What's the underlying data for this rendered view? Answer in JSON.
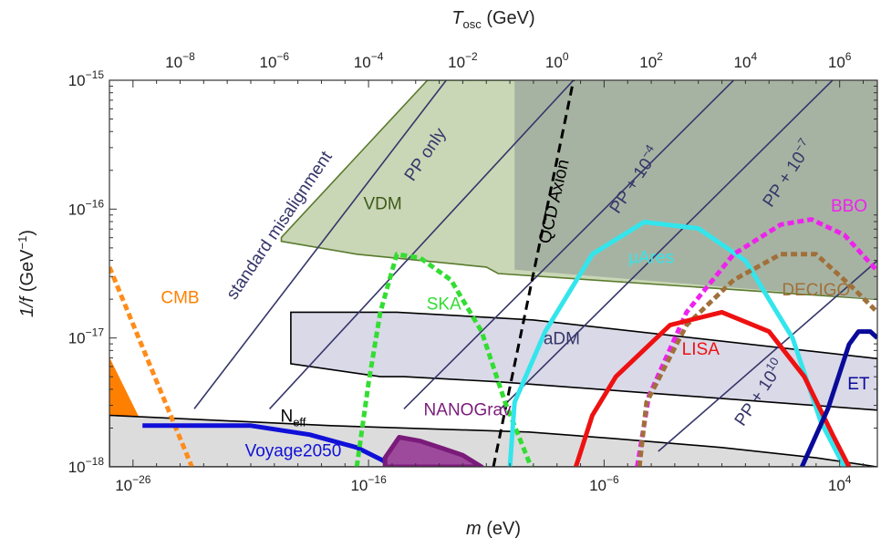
{
  "chart_data": {
    "type": "area",
    "xlabel_main": "m",
    "xlabel_unit": "(eV)",
    "ylabel": "1/f (GeV⁻¹)",
    "ylabel_main": "1/f",
    "ylabel_unit": "(GeV",
    "ylabel_exp": "−1",
    "ylabel_close": ")",
    "x2label_main": "T",
    "x2label_sub": "osc",
    "x2label_unit": "(GeV)",
    "xscale": "log",
    "yscale": "log",
    "xlim_log10": [
      -27,
      5.6
    ],
    "ylim_log10": [
      -18,
      -15
    ],
    "bottom_ticks": [
      {
        "pow": -26,
        "label": "10",
        "exp": "−26"
      },
      {
        "pow": -16,
        "label": "10",
        "exp": "−16"
      },
      {
        "pow": -6,
        "label": "10",
        "exp": "−6"
      },
      {
        "pow": 4,
        "label": "10",
        "exp": "4"
      }
    ],
    "left_ticks": [
      {
        "pow": -15,
        "label": "10",
        "exp": "−15"
      },
      {
        "pow": -16,
        "label": "10",
        "exp": "−16"
      },
      {
        "pow": -17,
        "label": "10",
        "exp": "−17"
      },
      {
        "pow": -18,
        "label": "10",
        "exp": "−18"
      }
    ],
    "top_ticks": [
      {
        "pow": -8,
        "label": "10",
        "exp": "−8"
      },
      {
        "pow": -6,
        "label": "10",
        "exp": "−6"
      },
      {
        "pow": -4,
        "label": "10",
        "exp": "−4"
      },
      {
        "pow": -2,
        "label": "10",
        "exp": "−2"
      },
      {
        "pow": 0,
        "label": "10",
        "exp": "0"
      },
      {
        "pow": 2,
        "label": "10",
        "exp": "2"
      },
      {
        "pow": 4,
        "label": "10",
        "exp": "4"
      },
      {
        "pow": 6,
        "label": "10",
        "exp": "6"
      }
    ],
    "top_axis_map": {
      "slope": 2.0,
      "intercept": -8.0
    },
    "regions": [
      {
        "name": "CMB",
        "label": "CMB",
        "color": "#ff8000",
        "points": [
          [
            -27,
            -17.15
          ],
          [
            -24.7,
            -18
          ],
          [
            -27,
            -18
          ]
        ]
      },
      {
        "name": "Neff",
        "label": "N",
        "label_sub": "eff",
        "color": "#dcdcdc",
        "stroke": "#000000",
        "points": [
          [
            -27,
            -17.6
          ],
          [
            -17.6,
            -17.68
          ],
          [
            -9.2,
            -17.73
          ],
          [
            -5.6,
            -17.78
          ],
          [
            -1,
            -17.85
          ],
          [
            3,
            -17.93
          ],
          [
            5.6,
            -18
          ],
          [
            5.6,
            -18
          ],
          [
            -27,
            -18
          ]
        ]
      },
      {
        "name": "aDM",
        "label": "aDM",
        "color": "#d9d9e8",
        "stroke": "#000000",
        "points": [
          [
            -19.3,
            -16.8
          ],
          [
            -14.8,
            -16.8
          ],
          [
            -9.0,
            -16.86
          ],
          [
            5.6,
            -17.16
          ],
          [
            5.6,
            -17.56
          ],
          [
            -10.5,
            -17.34
          ],
          [
            -14.5,
            -17.3
          ],
          [
            -15.5,
            -17.3
          ],
          [
            -19.3,
            -17.2
          ]
        ]
      },
      {
        "name": "VDM",
        "label": "VDM",
        "color": "#c9d7b6",
        "stroke": "#5a7a2e",
        "points": [
          [
            -19.7,
            -16.22
          ],
          [
            -13.5,
            -15
          ],
          [
            5.6,
            -15
          ],
          [
            5.6,
            -16.7
          ],
          [
            -10.5,
            -16.5
          ],
          [
            -11,
            -16.45
          ],
          [
            -16.5,
            -16.35
          ],
          [
            -19.7,
            -16.25
          ]
        ]
      },
      {
        "name": "QCD-allowed",
        "label": "",
        "color": "#a7b3a2",
        "points": [
          [
            -9.8,
            -15.0
          ],
          [
            5.6,
            -15.0
          ],
          [
            5.6,
            -16.7
          ],
          [
            -9.8,
            -16.47
          ]
        ]
      }
    ],
    "lines": [
      {
        "name": "standard misalignment",
        "label": "standard misalignment",
        "color": "#36366a",
        "points": [
          [
            -23.4,
            -17.55
          ],
          [
            -12.7,
            -15.0
          ]
        ]
      },
      {
        "name": "PP only",
        "label": "PP only",
        "color": "#36366a",
        "points": [
          [
            -20.2,
            -17.55
          ],
          [
            -7.3,
            -15.0
          ]
        ]
      },
      {
        "name": "PP + 10^-4",
        "label": "PP + 10",
        "exp": "−4",
        "color": "#36366a",
        "points": [
          [
            -14.5,
            -17.55
          ],
          [
            -0.5,
            -15.0
          ]
        ]
      },
      {
        "name": "PP + 10^-7",
        "label": "PP + 10",
        "exp": "−7",
        "color": "#36366a",
        "points": [
          [
            -10.4,
            -17.55
          ],
          [
            3.7,
            -15.0
          ]
        ]
      },
      {
        "name": "PP + 10^10",
        "label": "PP + 10",
        "exp": "10",
        "color": "#36366a",
        "points": [
          [
            -3.7,
            -17.88
          ],
          [
            5.6,
            -16.4
          ]
        ]
      },
      {
        "name": "QCD Axion",
        "label": "QCD Axion",
        "color": "#000000",
        "dash": "10,6",
        "points": [
          [
            -10.7,
            -18
          ],
          [
            -7.3,
            -15.0
          ]
        ]
      }
    ],
    "curves": [
      {
        "name": "CMB",
        "label": "CMB",
        "color": "#ff8c1a",
        "dash": "7,4",
        "width": 5,
        "points": [
          [
            -27,
            -16.45
          ],
          [
            -23.5,
            -18
          ]
        ]
      },
      {
        "name": "Voyage2050",
        "label": "Voyage2050",
        "color": "#1010d8",
        "width": 5,
        "points": [
          [
            -25.6,
            -17.68
          ],
          [
            -21.0,
            -17.68
          ],
          [
            -18.5,
            -17.75
          ],
          [
            -16.5,
            -17.85
          ],
          [
            -15.4,
            -17.95
          ],
          [
            -15.0,
            -18.0
          ]
        ]
      },
      {
        "name": "NANOGrav",
        "label": "NANOGrav",
        "color": "#7a1b7a",
        "width": 5,
        "fill": "#9d4a9d",
        "points": [
          [
            -15.3,
            -17.93
          ],
          [
            -14.7,
            -17.77
          ],
          [
            -13.8,
            -17.8
          ],
          [
            -12.8,
            -17.86
          ],
          [
            -12.0,
            -17.91
          ],
          [
            -11.2,
            -18.0
          ],
          [
            -15.3,
            -18.0
          ]
        ]
      },
      {
        "name": "SKA",
        "label": "SKA",
        "color": "#33dd33",
        "dash": "7,4",
        "width": 5,
        "points": [
          [
            -16.5,
            -18.0
          ],
          [
            -16.0,
            -17.35
          ],
          [
            -15.5,
            -16.8
          ],
          [
            -14.8,
            -16.35
          ],
          [
            -13.8,
            -16.38
          ],
          [
            -12.5,
            -16.55
          ],
          [
            -11.2,
            -16.95
          ],
          [
            -10.2,
            -17.5
          ],
          [
            -9.1,
            -18.0
          ]
        ]
      },
      {
        "name": "muAres",
        "label": "μAres",
        "color": "#33e5ec",
        "width": 5,
        "points": [
          [
            -10.0,
            -18.0
          ],
          [
            -9.8,
            -17.5
          ],
          [
            -8.5,
            -16.95
          ],
          [
            -6.5,
            -16.35
          ],
          [
            -4.3,
            -16.1
          ],
          [
            -2.0,
            -16.15
          ],
          [
            0.0,
            -16.4
          ],
          [
            2.0,
            -17.0
          ],
          [
            3.2,
            -17.65
          ],
          [
            4.2,
            -18.0
          ]
        ]
      },
      {
        "name": "BBO",
        "label": "BBO",
        "color": "#ee22ee",
        "dash": "7,4",
        "width": 5,
        "points": [
          [
            -4.6,
            -18.0
          ],
          [
            -4.1,
            -17.45
          ],
          [
            -2.5,
            -16.8
          ],
          [
            -0.5,
            -16.35
          ],
          [
            1.5,
            -16.12
          ],
          [
            2.8,
            -16.08
          ],
          [
            4.2,
            -16.2
          ],
          [
            5.6,
            -16.48
          ]
        ]
      },
      {
        "name": "DECIGO",
        "label": "DECIGO",
        "color": "#a0703a",
        "dash": "7,4",
        "width": 5,
        "points": [
          [
            -4.5,
            -18.0
          ],
          [
            -4.2,
            -17.5
          ],
          [
            -2.5,
            -16.9
          ],
          [
            -0.5,
            -16.55
          ],
          [
            1.5,
            -16.35
          ],
          [
            3.0,
            -16.35
          ],
          [
            4.5,
            -16.6
          ],
          [
            5.6,
            -16.8
          ]
        ]
      },
      {
        "name": "LISA",
        "label": "LISA",
        "color": "#ee1111",
        "width": 5,
        "points": [
          [
            -7.2,
            -18.0
          ],
          [
            -6.5,
            -17.6
          ],
          [
            -5.5,
            -17.3
          ],
          [
            -3.2,
            -16.9
          ],
          [
            -1.0,
            -16.8
          ],
          [
            1.0,
            -16.95
          ],
          [
            2.5,
            -17.3
          ],
          [
            3.7,
            -17.75
          ],
          [
            4.4,
            -18.0
          ]
        ]
      },
      {
        "name": "ET",
        "label": "ET",
        "color": "#0a0a9a",
        "width": 5,
        "points": [
          [
            2.4,
            -18.0
          ],
          [
            3.5,
            -17.55
          ],
          [
            4.4,
            -17.05
          ],
          [
            4.8,
            -16.95
          ],
          [
            5.3,
            -16.95
          ],
          [
            5.6,
            -17.0
          ]
        ]
      }
    ]
  }
}
